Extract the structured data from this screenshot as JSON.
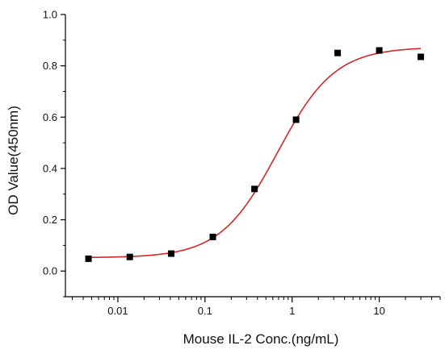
{
  "chart_data": {
    "type": "scatter",
    "title": "",
    "xlabel": "Mouse IL-2 Conc.(ng/mL)",
    "ylabel": "OD Value(450nm)",
    "x_scale": "log",
    "xlim": [
      0.0025,
      50
    ],
    "ylim": [
      -0.1,
      1.0
    ],
    "grid": false,
    "legend": "none",
    "x_ticks": [
      {
        "value": 0.01,
        "label": "0.01"
      },
      {
        "value": 0.1,
        "label": "0.1"
      },
      {
        "value": 1,
        "label": "1"
      },
      {
        "value": 10,
        "label": "10"
      }
    ],
    "y_ticks": [
      {
        "value": 0.0,
        "label": "0.0"
      },
      {
        "value": 0.2,
        "label": "0.2"
      },
      {
        "value": 0.4,
        "label": "0.4"
      },
      {
        "value": 0.6,
        "label": "0.6"
      },
      {
        "value": 0.8,
        "label": "0.8"
      },
      {
        "value": 1.0,
        "label": "1.0"
      }
    ],
    "series": [
      {
        "marker": "square",
        "color": "#000000",
        "points": [
          {
            "x": 0.0046,
            "y": 0.048
          },
          {
            "x": 0.0137,
            "y": 0.055
          },
          {
            "x": 0.041,
            "y": 0.068
          },
          {
            "x": 0.123,
            "y": 0.133
          },
          {
            "x": 0.37,
            "y": 0.32
          },
          {
            "x": 1.11,
            "y": 0.59
          },
          {
            "x": 3.33,
            "y": 0.85
          },
          {
            "x": 10,
            "y": 0.86
          },
          {
            "x": 30,
            "y": 0.835
          }
        ]
      },
      {
        "kind": "fit-curve",
        "color": "#d62728",
        "model": "4PL",
        "params": {
          "bottom": 0.052,
          "top": 0.873,
          "ec50": 0.68,
          "hill": 1.32
        }
      }
    ]
  }
}
